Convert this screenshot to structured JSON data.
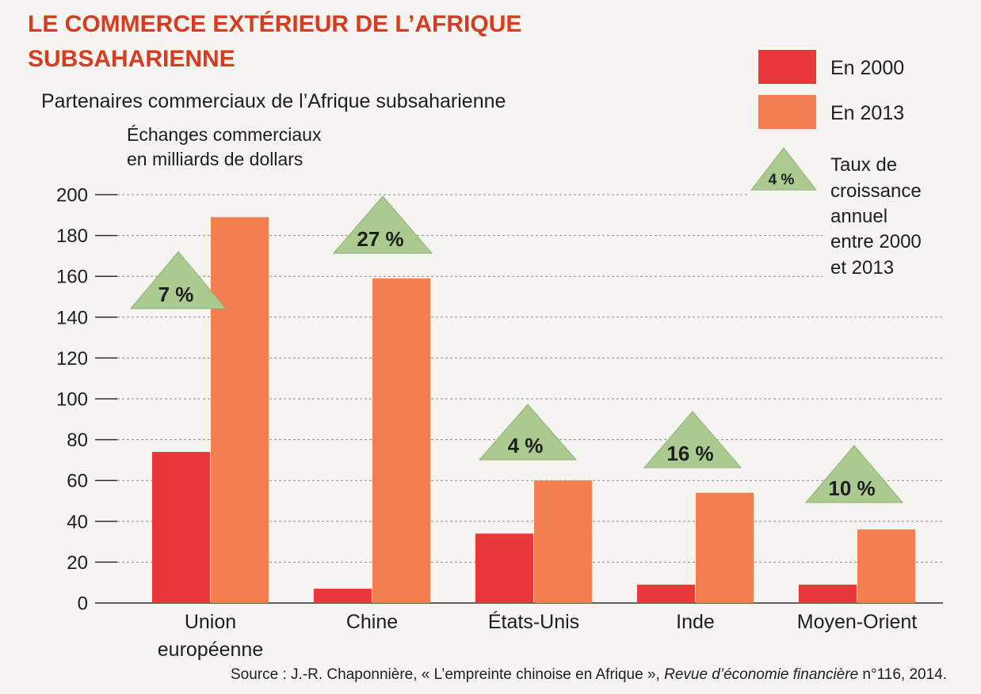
{
  "colors": {
    "title": "#d63c1f",
    "background": "#f5f4f1",
    "text": "#1e1e1e"
  },
  "chart_data": {
    "type": "bar",
    "title_lines": [
      "LE COMMERCE EXTÉRIEUR DE L’AFRIQUE",
      "SUBSAHARIENNE"
    ],
    "subtitle": "Partenaires commerciaux de l’Afrique subsaharienne",
    "ylabel_lines": [
      "Échanges commerciaux",
      "en milliards de dollars"
    ],
    "ylim": [
      0,
      200
    ],
    "y_ticks": [
      0,
      20,
      40,
      60,
      80,
      100,
      120,
      140,
      160,
      180,
      200
    ],
    "grid": true,
    "categories": [
      "Union européenne",
      "Chine",
      "États-Unis",
      "Inde",
      "Moyen-Orient"
    ],
    "series": [
      {
        "name": "En 2000",
        "color": "#e8383b",
        "values": [
          74,
          7,
          34,
          9,
          9
        ]
      },
      {
        "name": "En 2013",
        "color": "#f27f50",
        "values": [
          189,
          159,
          60,
          54,
          36
        ]
      }
    ],
    "growth_rates": {
      "values": [
        7,
        27,
        4,
        16,
        10
      ],
      "labels": [
        "7 %",
        "27 %",
        "4 %",
        "16 %",
        "10 %"
      ],
      "color": "#abca8f"
    },
    "legend": {
      "placement": "top-right",
      "growth_symbol_label": "4 %",
      "growth_description_lines": [
        "Taux de",
        "croissance",
        "annuel",
        "entre 2000",
        "et 2013"
      ]
    },
    "source": {
      "prefix": "Source : J.-R. Chaponnière, « L’empreinte chinoise en Afrique », ",
      "journal": "Revue d’économie financière",
      "suffix": " n°116, 2014."
    }
  }
}
